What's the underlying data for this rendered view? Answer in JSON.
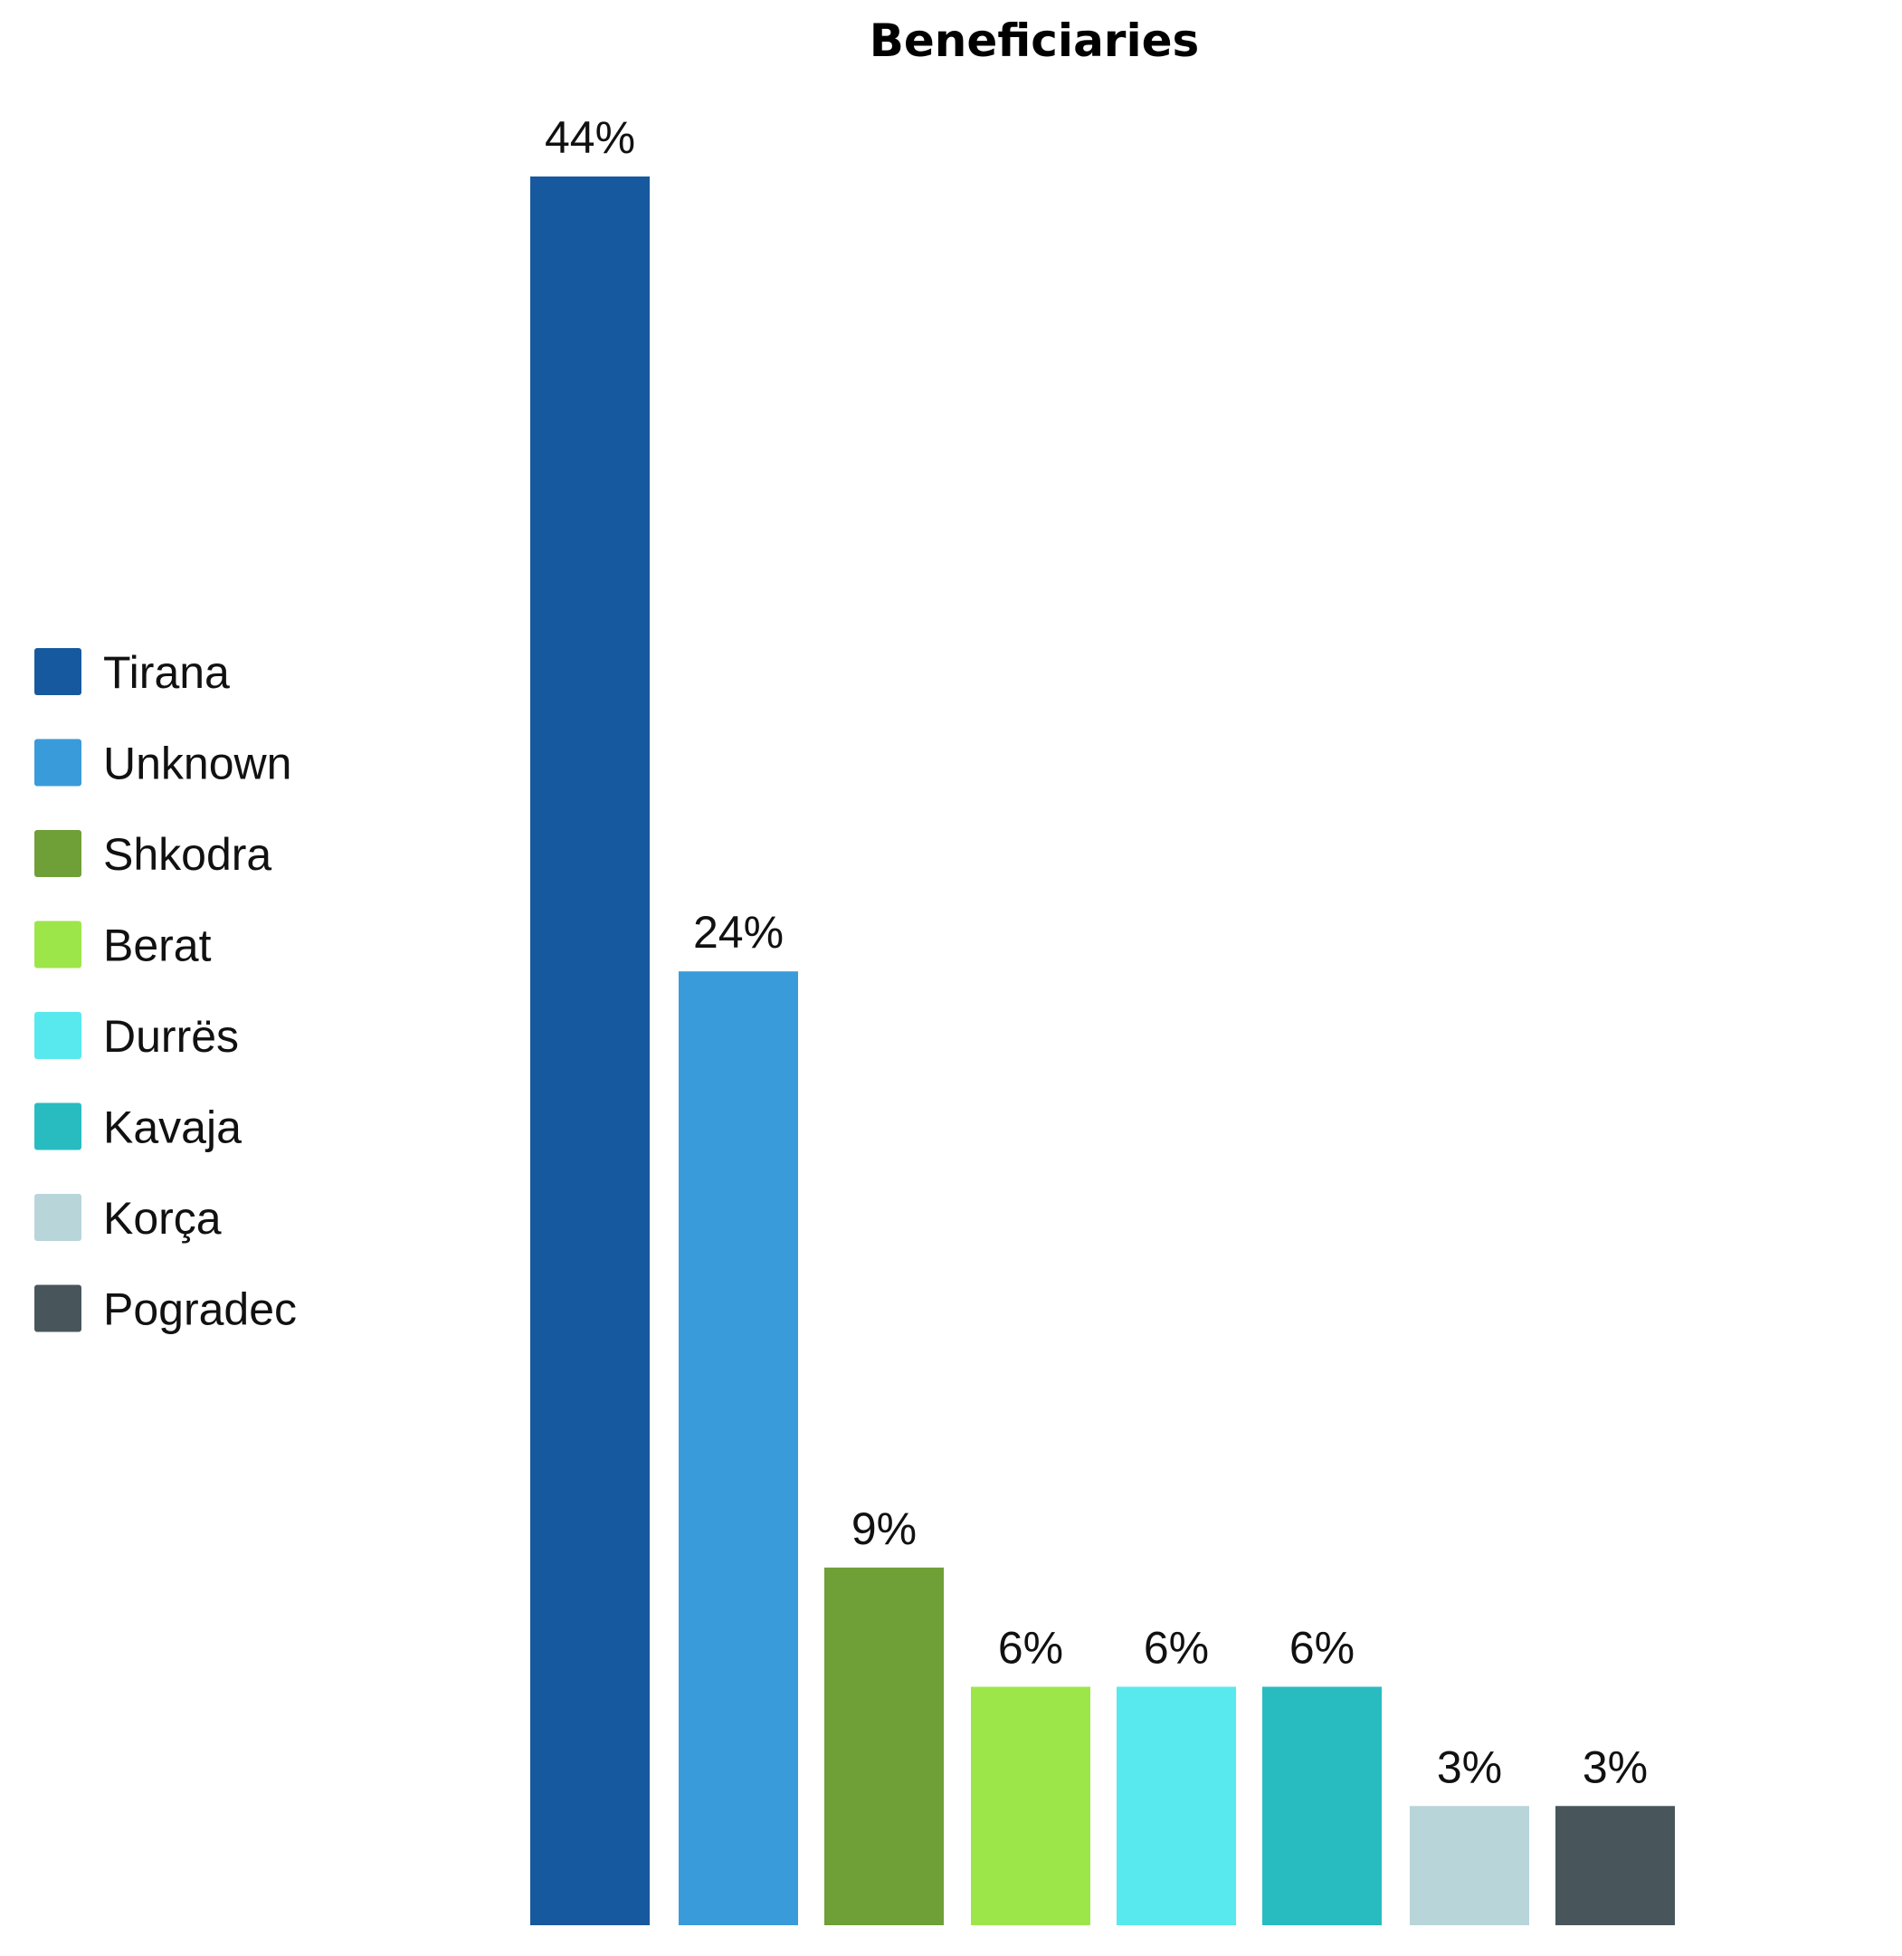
{
  "chart_data": {
    "type": "bar",
    "title": "Beneficiaries",
    "categories": [
      "Tirana",
      "Unknown",
      "Shkodra",
      "Berat",
      "Durrës",
      "Kavaja",
      "Korça",
      "Pogradec"
    ],
    "values": [
      44,
      24,
      9,
      6,
      6,
      6,
      3,
      3
    ],
    "value_labels": [
      "44%",
      "24%",
      "9%",
      "6%",
      "6%",
      "6%",
      "3%",
      "3%"
    ],
    "unit": "%",
    "colors": [
      "#17599e",
      "#3a9bdb",
      "#6f9f37",
      "#9de64a",
      "#57e9ee",
      "#28bcc0",
      "#b8d5da",
      "#48565c"
    ],
    "xlabel": "",
    "ylabel": "",
    "ylim": [
      0,
      44
    ],
    "grid": false,
    "legend": "left"
  }
}
